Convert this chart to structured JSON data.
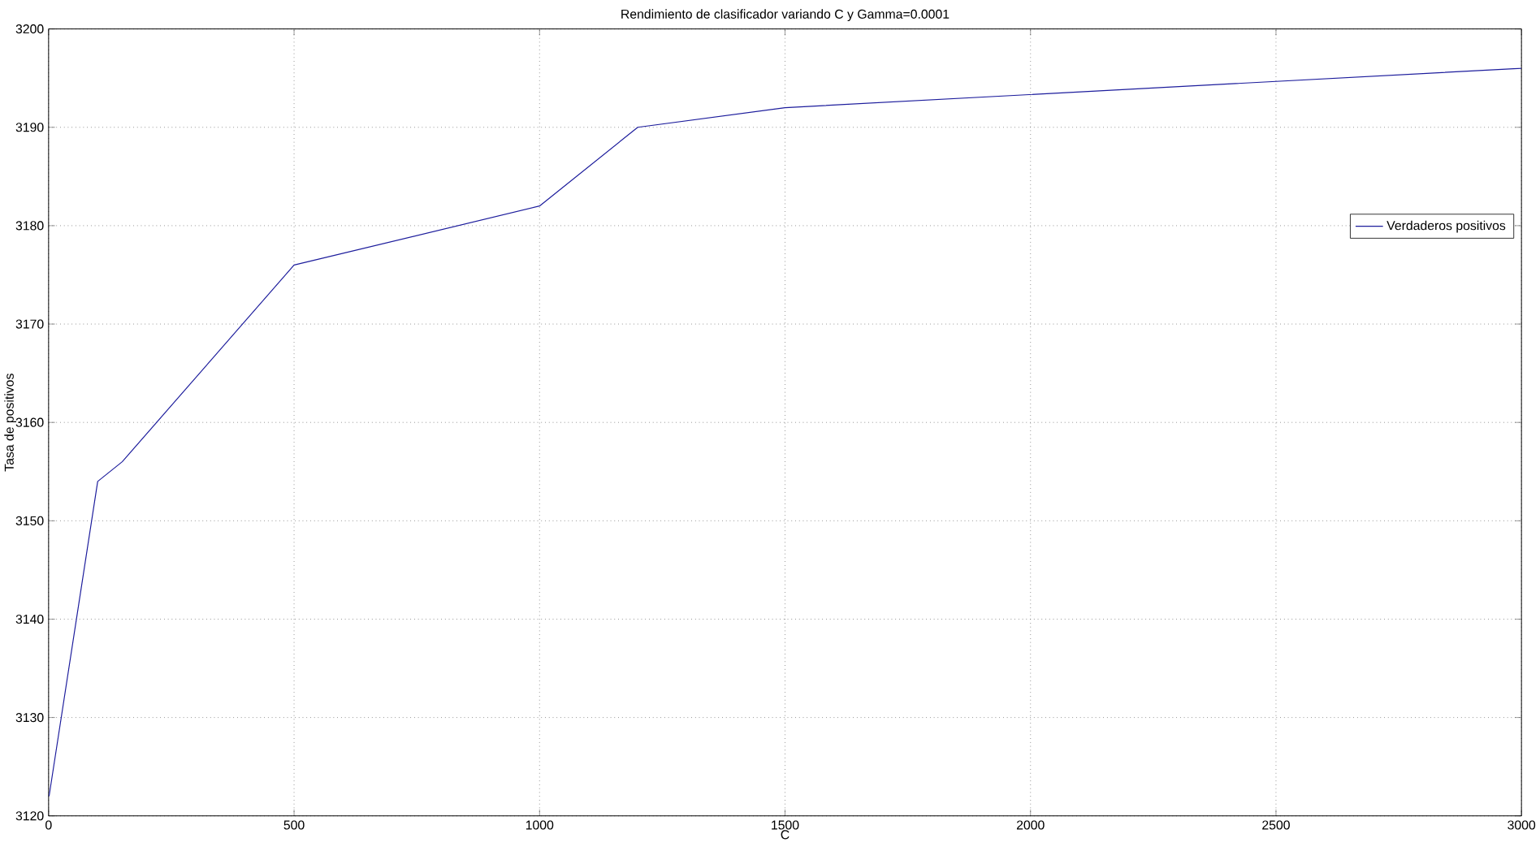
{
  "chart_data": {
    "type": "line",
    "title": "Rendimiento de clasificador variando C y Gamma=0.0001",
    "xlabel": "C",
    "ylabel": "Tasa de positivos",
    "x": [
      1,
      100,
      150,
      500,
      1000,
      1200,
      1500,
      3000
    ],
    "series": [
      {
        "name": "Verdaderos positivos",
        "color": "#1c1c9c",
        "values": [
          3122,
          3154,
          3156,
          3176,
          3182,
          3190,
          3192,
          3196
        ]
      }
    ],
    "xlim": [
      0,
      3000
    ],
    "ylim": [
      3120,
      3200
    ],
    "xticks": [
      0,
      500,
      1000,
      1500,
      2000,
      2500,
      3000
    ],
    "yticks": [
      3120,
      3130,
      3140,
      3150,
      3160,
      3170,
      3180,
      3190,
      3200
    ],
    "grid": true,
    "legend": "right",
    "marker": "none",
    "line_style": "solid"
  }
}
